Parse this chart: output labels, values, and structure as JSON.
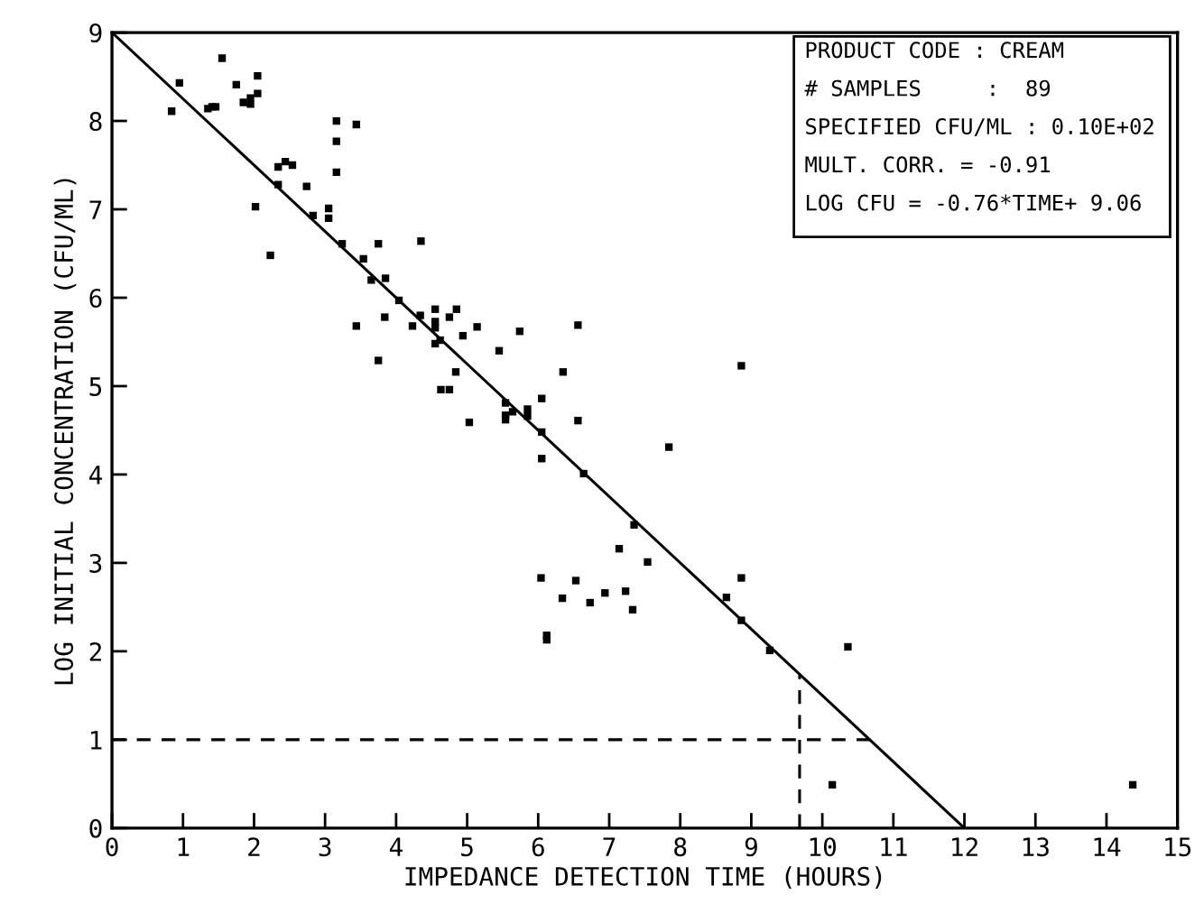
{
  "chart_data": {
    "type": "scatter",
    "xlabel": "IMPEDANCE DETECTION TIME (HOURS)",
    "ylabel": "LOG INITIAL CONCENTRATION (CFU/ML)",
    "annotations": [
      "PRODUCT CODE : CREAM",
      "# SAMPLES     :  89",
      "SPECIFIED CFU/ML : 0.10E+02",
      "MULT. CORR. = -0.91",
      "LOG CFU = -0.76*TIME+ 9.06"
    ],
    "xlim": [
      0,
      15
    ],
    "ylim": [
      0,
      9
    ],
    "xticks": [
      0,
      1,
      2,
      3,
      4,
      5,
      6,
      7,
      8,
      9,
      10,
      11,
      12,
      13,
      14,
      15
    ],
    "yticks": [
      0,
      1,
      2,
      3,
      4,
      5,
      6,
      7,
      8,
      9
    ],
    "grid": false,
    "legend": false,
    "series": [
      {
        "color": "#000000",
        "marker": "square",
        "x": [
          0.84,
          0.95,
          1.55,
          1.35,
          1.41,
          1.46,
          1.75,
          1.85,
          1.95,
          1.95,
          2.05,
          2.05,
          2.02,
          2.23,
          2.34,
          2.44,
          2.54,
          2.34,
          2.74,
          2.83,
          3.05,
          3.05,
          3.16,
          3.16,
          3.16,
          3.44,
          3.24,
          3.54,
          3.65,
          3.75,
          3.85,
          4.04,
          4.35,
          3.44,
          3.84,
          3.75,
          4.34,
          4.23,
          4.55,
          4.55,
          4.55,
          4.62,
          4.55,
          4.75,
          4.85,
          4.94,
          4.84,
          5.14,
          5.74,
          6.56,
          5.45,
          6.35,
          4.63,
          4.75,
          5.03,
          5.54,
          5.54,
          5.54,
          5.64,
          5.85,
          5.85,
          6.05,
          6.05,
          6.56,
          6.05,
          6.64,
          7.84,
          7.35,
          8.86,
          7.14,
          7.54,
          6.04,
          6.53,
          6.34,
          6.73,
          6.94,
          7.23,
          7.33,
          6.12,
          6.12,
          8.86,
          8.65,
          8.86,
          9.26,
          10.36,
          10.14,
          14.37
        ],
        "values": [
          8.11,
          8.43,
          8.71,
          8.14,
          8.16,
          8.16,
          8.41,
          8.21,
          8.19,
          8.26,
          8.51,
          8.31,
          7.03,
          6.48,
          7.48,
          7.54,
          7.5,
          7.28,
          7.26,
          6.93,
          7.01,
          6.9,
          8.0,
          7.77,
          7.42,
          7.96,
          6.61,
          6.44,
          6.2,
          6.61,
          6.22,
          5.97,
          6.64,
          5.68,
          5.78,
          5.29,
          5.8,
          5.68,
          5.87,
          5.73,
          5.66,
          5.52,
          5.48,
          5.78,
          5.87,
          5.57,
          5.16,
          5.67,
          5.62,
          5.69,
          5.4,
          5.16,
          4.96,
          4.96,
          4.59,
          4.81,
          4.67,
          4.62,
          4.71,
          4.74,
          4.66,
          4.86,
          4.48,
          4.61,
          4.18,
          4.01,
          4.31,
          3.43,
          5.23,
          3.16,
          3.01,
          2.83,
          2.8,
          2.6,
          2.55,
          2.66,
          2.68,
          2.47,
          2.18,
          2.13,
          2.83,
          2.61,
          2.35,
          2.01,
          2.05,
          0.49,
          0.49
        ]
      },
      {
        "type": "line",
        "color": "#000000",
        "marker": "none",
        "line_style": "solid",
        "x": [
          0,
          12
        ],
        "values": [
          9,
          0
        ]
      },
      {
        "type": "line",
        "color": "#000000",
        "marker": "none",
        "line_style": "dashed",
        "x": [
          0,
          10.68
        ],
        "values": [
          1,
          1
        ]
      },
      {
        "type": "line",
        "color": "#000000",
        "marker": "none",
        "line_style": "dashed",
        "x": [
          9.68,
          9.68
        ],
        "values": [
          0,
          1.73
        ]
      }
    ]
  }
}
